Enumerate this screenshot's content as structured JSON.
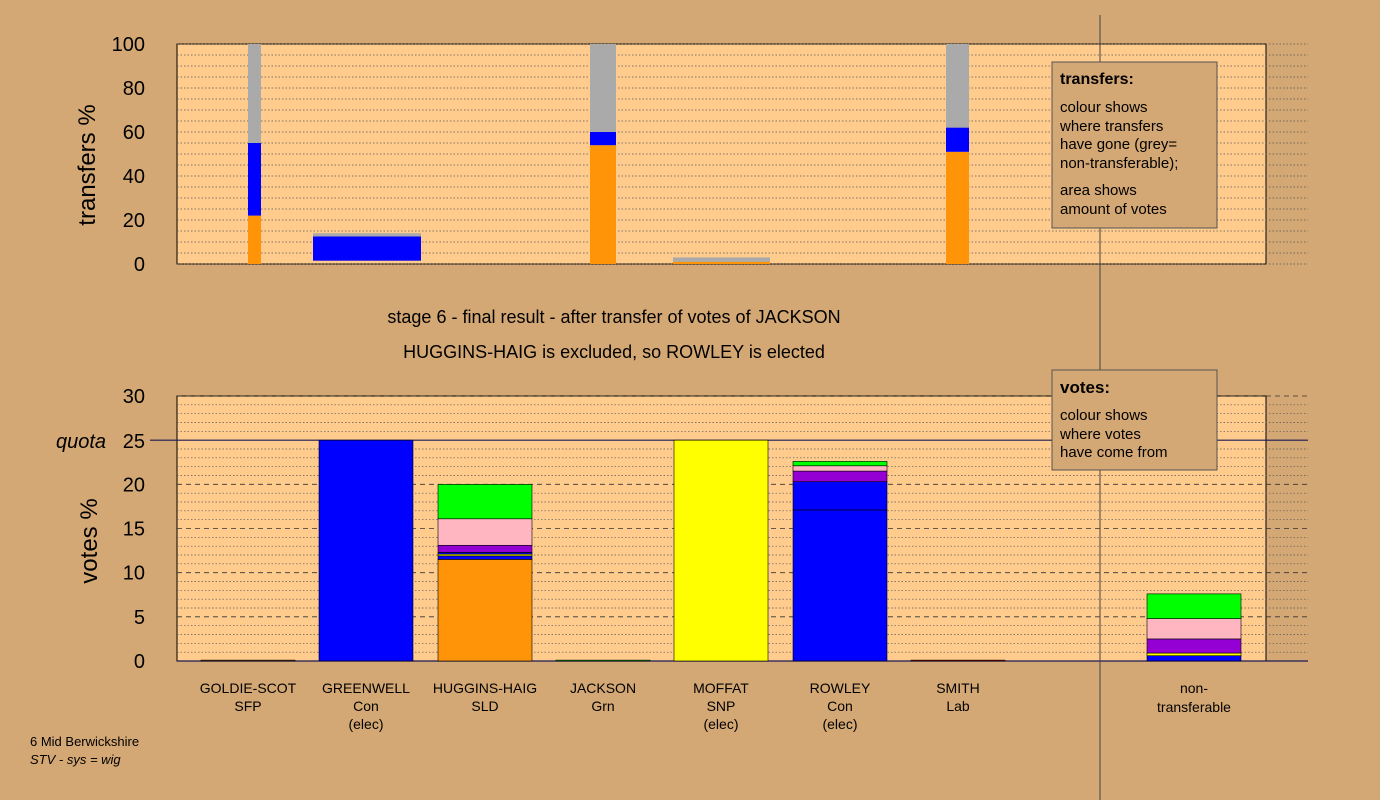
{
  "colors": {
    "background": "#D4A874",
    "plot_bg": "#FFCC8E",
    "SFP": "#A0522D",
    "Con": "#0000FF",
    "SLD": "#FF9408",
    "Grn": "#00FF00",
    "SNP": "#FFFF00",
    "Lab": "#FF0000",
    "non_transferable": "#AAAAAA",
    "purple": "#9400D3",
    "pink": "#FFB6C1",
    "green": "#22FF00"
  },
  "header": {
    "line1": "stage 6 - final result - after transfer of votes of JACKSON",
    "line2": "HUGGINS-HAIG is excluded, so ROWLEY is elected"
  },
  "footer": {
    "line1": "6 Mid Berwickshire",
    "line2": "STV - sys = wig"
  },
  "legend_transfers": {
    "title": "transfers:",
    "text1": [
      "colour shows",
      "where transfers",
      "have gone (grey=",
      "non-transferable);"
    ],
    "text2": [
      "area shows",
      "amount of votes"
    ]
  },
  "legend_votes": {
    "title": "votes:",
    "text1": [
      "colour shows",
      "where votes",
      "have come from"
    ]
  },
  "chart_data": [
    {
      "type": "bar",
      "title": "",
      "ylabel": "transfers %",
      "ylim": [
        0,
        100
      ],
      "yticks": [
        0,
        20,
        40,
        60,
        80,
        100
      ],
      "grid": "dotted",
      "bars": [
        {
          "x": 248,
          "w": 13,
          "segments": [
            {
              "color": "SLD",
              "value": 22
            },
            {
              "color": "Con",
              "value": 33
            },
            {
              "color": "non_transferable",
              "value": 45
            }
          ]
        },
        {
          "x": 313,
          "w": 108,
          "segments": [
            {
              "color": "Con",
              "value": 11
            },
            {
              "color": "non_transferable",
              "value": 1.5
            }
          ],
          "base": 1.5
        },
        {
          "x": 590,
          "w": 26,
          "segments": [
            {
              "color": "SLD",
              "value": 54
            },
            {
              "color": "Con",
              "value": 6
            },
            {
              "color": "non_transferable",
              "value": 40
            }
          ]
        },
        {
          "x": 673,
          "w": 97,
          "segments": [
            {
              "color": "SLD",
              "value": 1
            },
            {
              "color": "non_transferable",
              "value": 2
            }
          ]
        },
        {
          "x": 946,
          "w": 23,
          "segments": [
            {
              "color": "SLD",
              "value": 51
            },
            {
              "color": "Con",
              "value": 11
            },
            {
              "color": "non_transferable",
              "value": 38
            }
          ]
        }
      ]
    },
    {
      "type": "bar",
      "title": "",
      "ylabel": "votes %",
      "ylim": [
        0,
        30
      ],
      "yticks": [
        0,
        5,
        10,
        15,
        20,
        25,
        30
      ],
      "quota": 25,
      "quota_label": "quota",
      "candidates": [
        {
          "name": "GOLDIE-SCOT",
          "party": "SFP",
          "note": "",
          "segments": [
            {
              "color": "SFP",
              "value": 0.1
            }
          ]
        },
        {
          "name": "GREENWELL",
          "party": "Con",
          "note": "(elec)",
          "segments": [
            {
              "color": "Con",
              "value": 25
            }
          ]
        },
        {
          "name": "HUGGINS-HAIG",
          "party": "SLD",
          "note": "",
          "segments": [
            {
              "color": "SLD",
              "value": 11.5
            },
            {
              "color": "Con",
              "value": 0.4
            },
            {
              "color": "SNP",
              "value": 0.2
            },
            {
              "color": "Con",
              "value": 0.2
            },
            {
              "color": "purple",
              "value": 0.8
            },
            {
              "color": "pink",
              "value": 3
            },
            {
              "color": "Grn",
              "value": 3.9
            }
          ]
        },
        {
          "name": "JACKSON",
          "party": "Grn",
          "note": "",
          "segments": [
            {
              "color": "Grn",
              "value": 0.1
            }
          ]
        },
        {
          "name": "MOFFAT",
          "party": "SNP",
          "note": "(elec)",
          "segments": [
            {
              "color": "SNP",
              "value": 25
            }
          ]
        },
        {
          "name": "ROWLEY",
          "party": "Con",
          "note": "(elec)",
          "segments": [
            {
              "color": "Con",
              "value": 17.1
            },
            {
              "color": "Con",
              "value": 3.2
            },
            {
              "color": "purple",
              "value": 1.2
            },
            {
              "color": "pink",
              "value": 0.6
            },
            {
              "color": "Grn",
              "value": 0.5
            }
          ]
        },
        {
          "name": "SMITH",
          "party": "Lab",
          "note": "",
          "segments": [
            {
              "color": "Lab",
              "value": 0.1
            }
          ]
        },
        {
          "name": "non-",
          "party": "transferable",
          "note": "",
          "segments": [
            {
              "color": "Con",
              "value": 0.6
            },
            {
              "color": "SNP",
              "value": 0.3
            },
            {
              "color": "purple",
              "value": 1.6
            },
            {
              "color": "pink",
              "value": 2.3
            },
            {
              "color": "Grn",
              "value": 2.8
            }
          ]
        }
      ]
    }
  ]
}
